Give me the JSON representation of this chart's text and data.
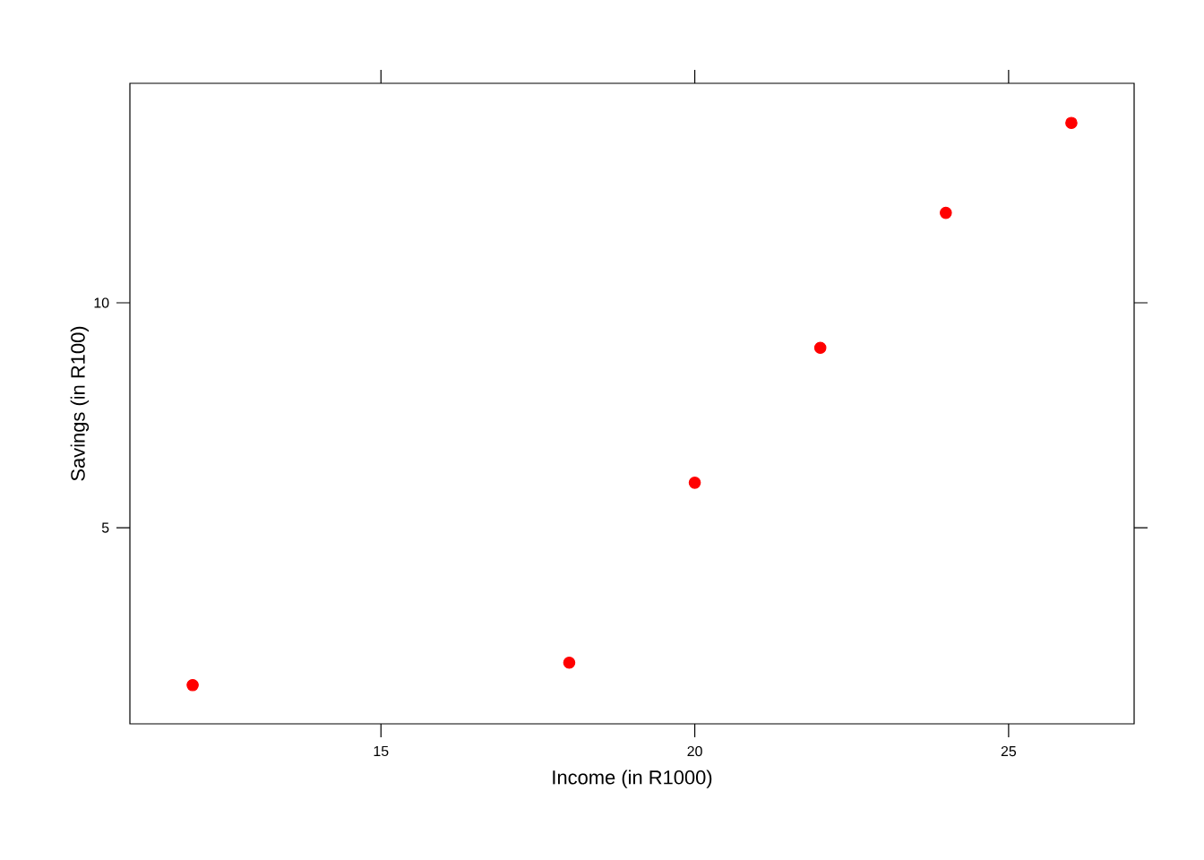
{
  "chart_data": {
    "type": "scatter",
    "xlabel": "Income (in R1000)",
    "ylabel": "Savings (in R100)",
    "x": [
      12,
      18,
      20,
      22,
      24,
      26
    ],
    "series": [
      {
        "color": "#ff0000",
        "values": [
          1.5,
          2,
          6,
          9,
          12,
          14
        ]
      }
    ],
    "xlim": [
      11,
      27
    ],
    "ylim": [
      0.64,
      14.88
    ],
    "xticks": [
      15,
      20,
      25
    ],
    "yticks": [
      5,
      10
    ],
    "marker": "circle"
  }
}
